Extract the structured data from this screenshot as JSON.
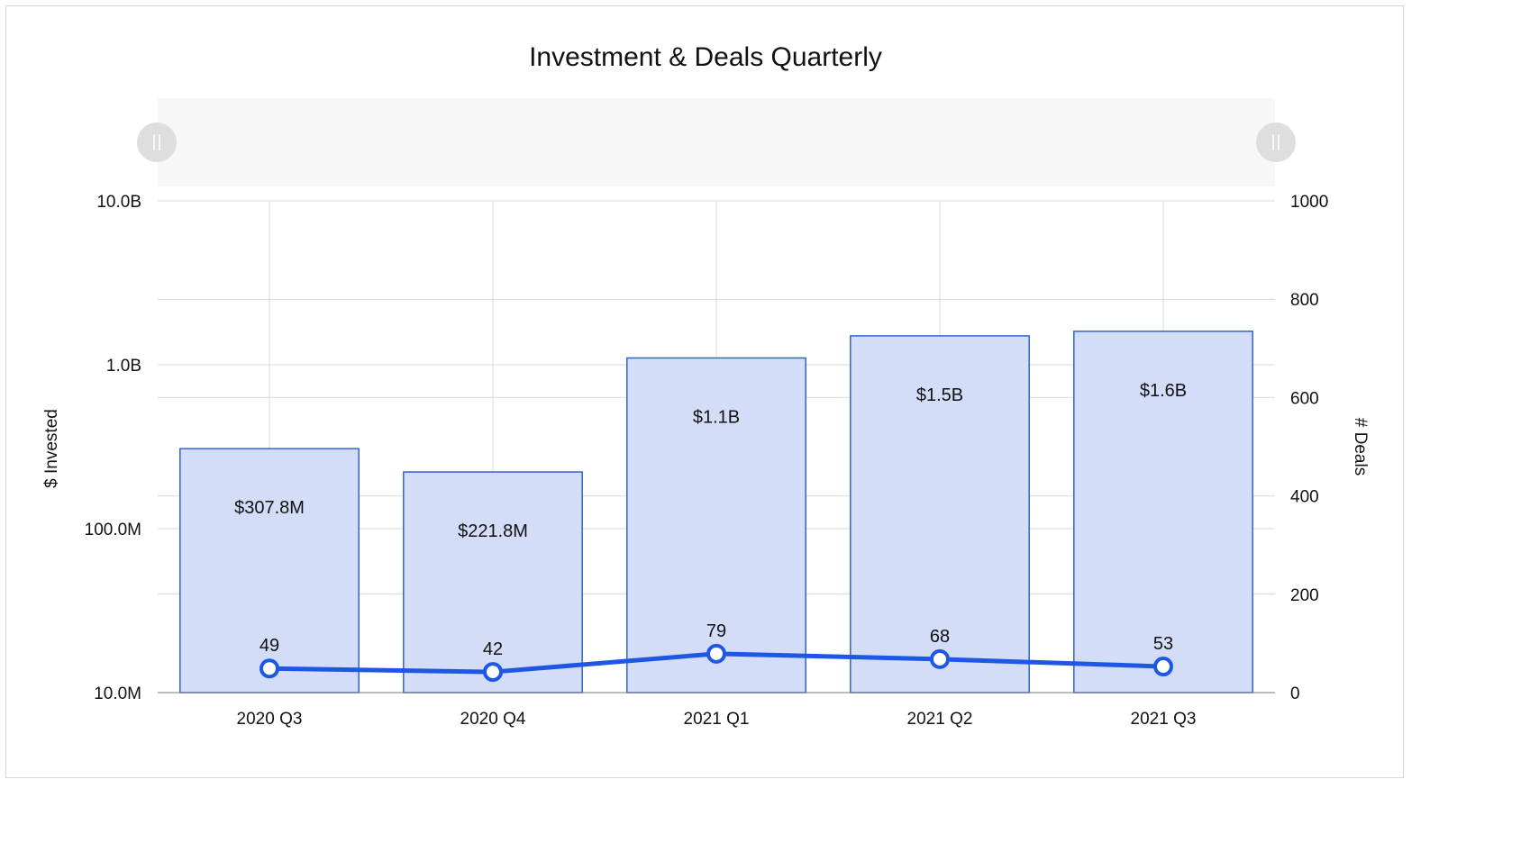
{
  "chart_data": {
    "type": "bar",
    "title": "Investment & Deals Quarterly",
    "categories": [
      "2020 Q3",
      "2020 Q4",
      "2021 Q1",
      "2021 Q2",
      "2021 Q3"
    ],
    "left_axis": {
      "label": "$ Invested",
      "scale": "log",
      "range": [
        10000000,
        10000000000
      ],
      "ticks": [
        {
          "value": 10000000,
          "label": "10.0M"
        },
        {
          "value": 100000000,
          "label": "100.0M"
        },
        {
          "value": 1000000000,
          "label": "1.0B"
        },
        {
          "value": 10000000000,
          "label": "10.0B"
        }
      ]
    },
    "right_axis": {
      "label": "# Deals",
      "scale": "linear",
      "range": [
        0,
        1000
      ],
      "ticks": [
        {
          "value": 0,
          "label": "0"
        },
        {
          "value": 200,
          "label": "200"
        },
        {
          "value": 400,
          "label": "400"
        },
        {
          "value": 600,
          "label": "600"
        },
        {
          "value": 800,
          "label": "800"
        },
        {
          "value": 1000,
          "label": "1000"
        }
      ]
    },
    "series": [
      {
        "type": "bar",
        "axis": "left",
        "values": [
          307800000,
          221800000,
          1100000000,
          1500000000,
          1600000000
        ],
        "data_labels": [
          "$307.8M",
          "$221.8M",
          "$1.1B",
          "$1.5B",
          "$1.6B"
        ]
      },
      {
        "type": "line",
        "axis": "right",
        "values": [
          49,
          42,
          79,
          68,
          53
        ],
        "data_labels": [
          "49",
          "42",
          "79",
          "68",
          "53"
        ]
      }
    ],
    "grid": true,
    "range_selector": "top",
    "colors": {
      "bar_fill": "#d3ddf7",
      "bar_stroke": "#2f63d8",
      "line": "#1f57e5",
      "grid": "#d9d9d9",
      "navigator": "#f7f7f7",
      "handle": "#dedede"
    }
  }
}
